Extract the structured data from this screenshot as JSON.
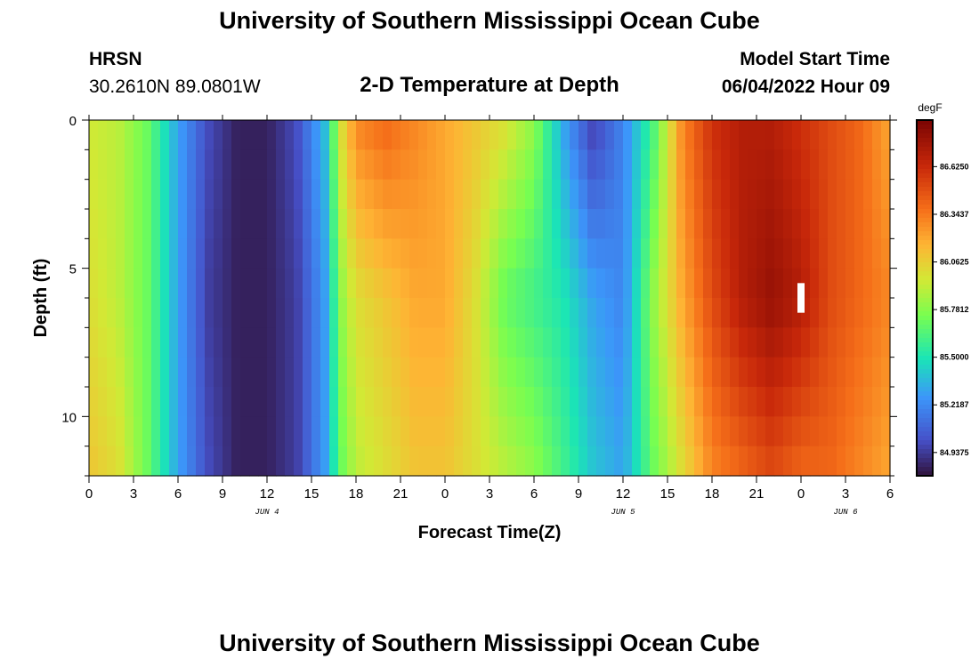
{
  "header": {
    "title": "University of Southern Mississippi Ocean Cube",
    "station": "HRSN",
    "coordinates": "30.2610N  89.0801W",
    "subtitle": "2-D Temperature at Depth",
    "model_start_label": "Model Start Time",
    "model_start_value": "06/04/2022 Hour 09"
  },
  "footer": {
    "title": "University of Southern Mississippi Ocean Cube"
  },
  "chart_data": {
    "type": "heatmap",
    "title": "2-D Temperature at Depth",
    "xlabel": "Forecast Time(Z)",
    "ylabel": "Depth (ft)",
    "x_ticks": [
      "0",
      "3",
      "6",
      "9",
      "12",
      "15",
      "18",
      "21",
      "0",
      "3",
      "6",
      "9",
      "12",
      "15",
      "18",
      "21",
      "0",
      "3",
      "6"
    ],
    "x_range_hours": [
      0,
      54
    ],
    "day_labels": [
      {
        "label": "JUN 4",
        "hour": 12
      },
      {
        "label": "JUN 5",
        "hour": 36
      },
      {
        "label": "JUN 6",
        "hour": 51
      }
    ],
    "y_ticks": [
      0,
      5,
      10
    ],
    "y_range": [
      0,
      12
    ],
    "y_inverted": true,
    "colorbar": {
      "unit": "degF",
      "range": [
        84.8,
        86.9
      ],
      "ticks": [
        "86.6250",
        "86.3437",
        "86.0625",
        "85.7812",
        "85.5000",
        "85.2187",
        "84.9375"
      ]
    },
    "temperature_profile": {
      "x_hours": [
        0,
        2,
        4,
        6,
        8,
        10,
        12,
        14,
        16,
        17,
        18,
        20,
        22,
        24,
        26,
        28,
        30,
        32,
        34,
        36,
        38,
        40,
        42,
        44,
        46,
        48,
        50,
        52,
        54
      ],
      "surface_degF": [
        85.95,
        85.9,
        85.7,
        85.3,
        85.0,
        84.85,
        84.85,
        85.0,
        85.4,
        86.0,
        86.3,
        86.4,
        86.3,
        86.2,
        86.1,
        86.0,
        85.8,
        85.3,
        84.95,
        85.2,
        85.6,
        86.3,
        86.6,
        86.7,
        86.7,
        86.6,
        86.5,
        86.4,
        86.2
      ],
      "mid_degF": [
        86.0,
        85.9,
        85.7,
        85.3,
        84.95,
        84.85,
        84.85,
        84.95,
        85.3,
        85.8,
        86.0,
        86.1,
        86.2,
        86.2,
        86.0,
        85.7,
        85.6,
        85.5,
        85.3,
        85.2,
        85.8,
        86.2,
        86.5,
        86.7,
        86.8,
        86.7,
        86.5,
        86.4,
        86.3
      ],
      "bottom_degF": [
        86.1,
        86.0,
        85.7,
        85.3,
        85.0,
        84.85,
        84.85,
        84.95,
        85.3,
        85.7,
        85.9,
        86.0,
        86.1,
        86.1,
        86.0,
        85.9,
        85.8,
        85.6,
        85.4,
        85.3,
        85.7,
        86.0,
        86.3,
        86.4,
        86.5,
        86.4,
        86.4,
        86.3,
        86.2
      ]
    }
  }
}
